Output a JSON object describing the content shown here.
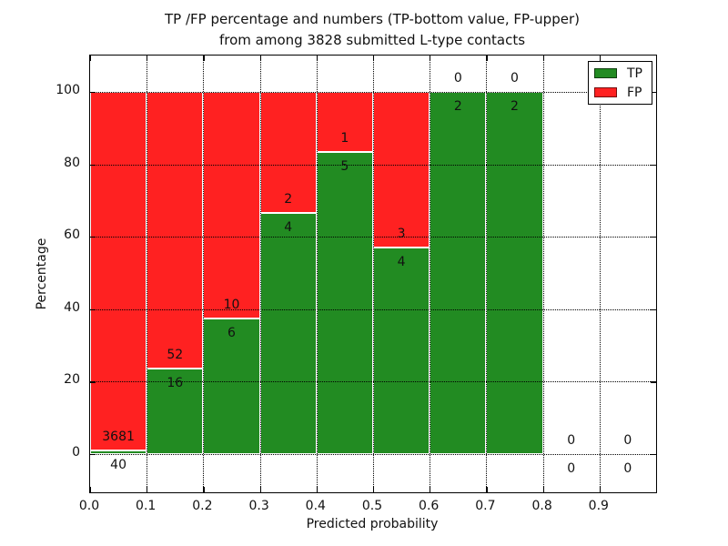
{
  "chart_data": {
    "type": "bar",
    "subtype": "stacked-percentage-histogram",
    "title_line1": "TP /FP percentage and numbers (TP-bottom value, FP-upper)",
    "title_line2": "from among 3828 submitted L-type contacts",
    "xlabel": "Predicted probability",
    "ylabel": "Percentage",
    "xlim": [
      0.0,
      1.0
    ],
    "ylim": [
      -10.5,
      110.5
    ],
    "x_ticks": [
      {
        "value": 0.0,
        "label": "0.0"
      },
      {
        "value": 0.1,
        "label": "0.1"
      },
      {
        "value": 0.2,
        "label": "0.2"
      },
      {
        "value": 0.3,
        "label": "0.3"
      },
      {
        "value": 0.4,
        "label": "0.4"
      },
      {
        "value": 0.5,
        "label": "0.5"
      },
      {
        "value": 0.6,
        "label": "0.6"
      },
      {
        "value": 0.7,
        "label": "0.7"
      },
      {
        "value": 0.8,
        "label": "0.8"
      },
      {
        "value": 0.9,
        "label": "0.9"
      },
      {
        "value": 1.0,
        "label": ""
      }
    ],
    "y_ticks": [
      {
        "value": 0,
        "label": "0"
      },
      {
        "value": 20,
        "label": "20"
      },
      {
        "value": 40,
        "label": "40"
      },
      {
        "value": 60,
        "label": "60"
      },
      {
        "value": 80,
        "label": "80"
      },
      {
        "value": 100,
        "label": "100"
      }
    ],
    "grid": "dotted black, drawn above bars",
    "legend": [
      {
        "label": "TP",
        "color": "#228B22"
      },
      {
        "label": "FP",
        "color": "#FF2121"
      }
    ],
    "colors": {
      "tp": "#228B22",
      "fp": "#FF2121",
      "bar_edge": "#ffffff",
      "frame": "#000000",
      "background": "#ffffff"
    },
    "bins": [
      {
        "bin_start": 0.0,
        "bin_end": 0.1,
        "tp": 40,
        "fp": 3681,
        "tp_pct": 1.08
      },
      {
        "bin_start": 0.1,
        "bin_end": 0.2,
        "tp": 16,
        "fp": 52,
        "tp_pct": 23.53
      },
      {
        "bin_start": 0.2,
        "bin_end": 0.3,
        "tp": 6,
        "fp": 10,
        "tp_pct": 37.5
      },
      {
        "bin_start": 0.3,
        "bin_end": 0.4,
        "tp": 4,
        "fp": 2,
        "tp_pct": 66.67
      },
      {
        "bin_start": 0.4,
        "bin_end": 0.5,
        "tp": 5,
        "fp": 1,
        "tp_pct": 83.33
      },
      {
        "bin_start": 0.5,
        "bin_end": 0.6,
        "tp": 4,
        "fp": 3,
        "tp_pct": 57.14
      },
      {
        "bin_start": 0.6,
        "bin_end": 0.7,
        "tp": 2,
        "fp": 0,
        "tp_pct": 100
      },
      {
        "bin_start": 0.7,
        "bin_end": 0.8,
        "tp": 2,
        "fp": 0,
        "tp_pct": 100
      },
      {
        "bin_start": 0.8,
        "bin_end": 0.9,
        "tp": 0,
        "fp": 0,
        "tp_pct": 0
      },
      {
        "bin_start": 0.9,
        "bin_end": 1.0,
        "tp": 0,
        "fp": 0,
        "tp_pct": 0
      }
    ]
  }
}
